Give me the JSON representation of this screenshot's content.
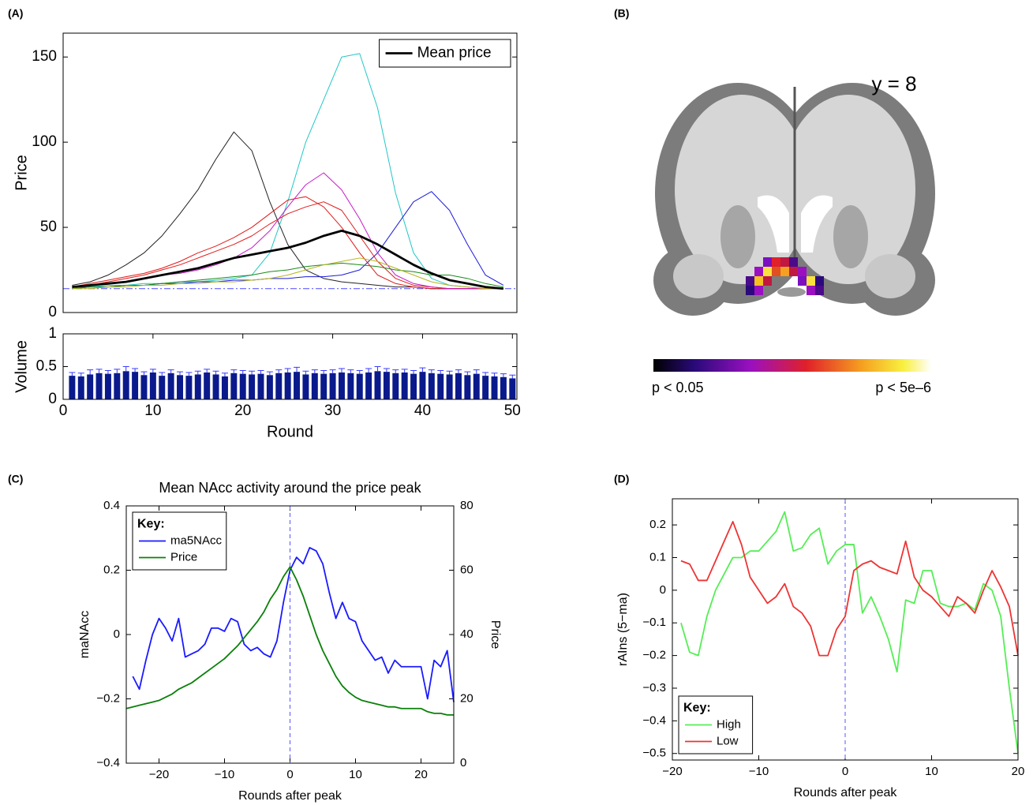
{
  "chart_data": [
    {
      "type": "line",
      "panel_label": "(A)",
      "ylabel": "Price",
      "x": [
        1,
        3,
        5,
        7,
        9,
        11,
        13,
        15,
        17,
        19,
        21,
        23,
        25,
        27,
        29,
        31,
        33,
        35,
        37,
        39,
        41,
        43,
        45,
        47,
        49
      ],
      "xlim": [
        0,
        50.5
      ],
      "ylim": [
        0,
        164
      ],
      "yticks": [
        0,
        50,
        100,
        150
      ],
      "reference_line": 14,
      "legend": "upper right",
      "series": [
        {
          "color": "#222222",
          "values": [
            16,
            18,
            22,
            28,
            35,
            45,
            58,
            72,
            90,
            106,
            95,
            65,
            40,
            25,
            20,
            18,
            17,
            16,
            15,
            15,
            14,
            14,
            14,
            14,
            14
          ]
        },
        {
          "color": "#22c7c7",
          "values": [
            15,
            15,
            16,
            16,
            17,
            17,
            18,
            18,
            19,
            20,
            22,
            35,
            65,
            100,
            125,
            150,
            152,
            120,
            70,
            35,
            20,
            16,
            15,
            14,
            14
          ]
        },
        {
          "color": "#1a1adb",
          "values": [
            14,
            15,
            15,
            16,
            16,
            17,
            17,
            18,
            18,
            19,
            19,
            20,
            20,
            21,
            21,
            22,
            25,
            35,
            50,
            65,
            71,
            60,
            40,
            22,
            16
          ]
        },
        {
          "color": "#e01a1a",
          "values": [
            15,
            17,
            19,
            21,
            23,
            26,
            30,
            35,
            39,
            44,
            50,
            58,
            66,
            68,
            62,
            50,
            35,
            22,
            17,
            15,
            14,
            14,
            14,
            14,
            14
          ]
        },
        {
          "color": "#e01a1a",
          "values": [
            15,
            16,
            18,
            20,
            22,
            25,
            28,
            32,
            36,
            40,
            45,
            52,
            58,
            62,
            65,
            60,
            45,
            30,
            20,
            16,
            15,
            14,
            14,
            14,
            14
          ]
        },
        {
          "color": "#c71ac7",
          "values": [
            15,
            16,
            17,
            18,
            20,
            22,
            23,
            25,
            28,
            32,
            38,
            48,
            62,
            75,
            82,
            72,
            55,
            35,
            22,
            17,
            15,
            14,
            14,
            14,
            14
          ]
        },
        {
          "color": "#1a8a1a",
          "values": [
            14,
            15,
            15,
            16,
            16,
            17,
            18,
            19,
            20,
            21,
            22,
            24,
            25,
            27,
            28,
            29,
            28,
            27,
            25,
            24,
            22,
            22,
            20,
            17,
            15
          ]
        },
        {
          "color": "#b5b51a",
          "values": [
            14,
            14,
            15,
            15,
            16,
            16,
            17,
            17,
            18,
            18,
            19,
            20,
            22,
            25,
            28,
            30,
            32,
            30,
            26,
            22,
            18,
            16,
            15,
            14,
            14
          ]
        },
        {
          "name": "Mean price",
          "color": "#000000",
          "values": [
            15,
            16,
            17,
            18,
            20,
            22,
            24,
            26,
            29,
            32,
            34,
            36,
            38,
            41,
            45,
            48,
            45,
            40,
            34,
            28,
            23,
            19,
            17,
            15,
            14
          ]
        }
      ]
    },
    {
      "type": "bar",
      "xlabel": "Round",
      "ylabel": "Volume",
      "color": "#0a1a8c",
      "error_color": "#3a3aff",
      "x": [
        1,
        2,
        3,
        4,
        5,
        6,
        7,
        8,
        9,
        10,
        11,
        12,
        13,
        14,
        15,
        16,
        17,
        18,
        19,
        20,
        21,
        22,
        23,
        24,
        25,
        26,
        27,
        28,
        29,
        30,
        31,
        32,
        33,
        34,
        35,
        36,
        37,
        38,
        39,
        40,
        41,
        42,
        43,
        44,
        45,
        46,
        47,
        48,
        49,
        50
      ],
      "values": [
        0.36,
        0.35,
        0.38,
        0.4,
        0.39,
        0.4,
        0.43,
        0.42,
        0.37,
        0.41,
        0.36,
        0.4,
        0.37,
        0.36,
        0.38,
        0.41,
        0.38,
        0.35,
        0.4,
        0.39,
        0.38,
        0.39,
        0.37,
        0.4,
        0.41,
        0.42,
        0.38,
        0.4,
        0.39,
        0.4,
        0.41,
        0.4,
        0.39,
        0.41,
        0.43,
        0.42,
        0.4,
        0.41,
        0.39,
        0.42,
        0.4,
        0.39,
        0.38,
        0.4,
        0.37,
        0.39,
        0.36,
        0.35,
        0.34,
        0.32
      ],
      "errors": [
        0.05,
        0.05,
        0.07,
        0.06,
        0.05,
        0.06,
        0.07,
        0.05,
        0.05,
        0.05,
        0.05,
        0.05,
        0.05,
        0.05,
        0.05,
        0.05,
        0.05,
        0.05,
        0.05,
        0.05,
        0.05,
        0.05,
        0.05,
        0.05,
        0.06,
        0.07,
        0.05,
        0.05,
        0.05,
        0.05,
        0.06,
        0.05,
        0.05,
        0.06,
        0.07,
        0.05,
        0.05,
        0.05,
        0.05,
        0.06,
        0.05,
        0.05,
        0.05,
        0.05,
        0.05,
        0.06,
        0.05,
        0.05,
        0.05,
        0.05
      ],
      "xlim": [
        0,
        50.5
      ],
      "xticks": [
        0,
        10,
        20,
        30,
        40,
        50
      ],
      "ylim": [
        0,
        1
      ],
      "yticks": [
        0,
        0.5,
        1
      ]
    },
    {
      "type": "line",
      "panel_label": "(C)",
      "title": "Mean NAcc activity around the price peak",
      "xlabel": "Rounds after peak",
      "ylabel": "maNAcc",
      "y2label": "Price",
      "x": [
        -25,
        -24,
        -23,
        -22,
        -21,
        -20,
        -19,
        -18,
        -17,
        -16,
        -15,
        -14,
        -13,
        -12,
        -11,
        -10,
        -9,
        -8,
        -7,
        -6,
        -5,
        -4,
        -3,
        -2,
        -1,
        0,
        1,
        2,
        3,
        4,
        5,
        6,
        7,
        8,
        9,
        10,
        11,
        12,
        13,
        14,
        15,
        16,
        17,
        18,
        19,
        20,
        21,
        22,
        23,
        24,
        25
      ],
      "xlim": [
        -25,
        25
      ],
      "xticks": [
        {
          "value": -20,
          "label": "−20"
        },
        {
          "value": -10,
          "label": "−10"
        },
        0,
        10,
        20
      ],
      "ylim": [
        -0.4,
        0.4
      ],
      "yticks": [
        {
          "value": -0.4,
          "label": "−0.4"
        },
        {
          "value": -0.2,
          "label": "−0.2"
        },
        0,
        0.2,
        0.4
      ],
      "y2lim": [
        0,
        80
      ],
      "y2ticks": [
        0,
        20,
        40,
        60,
        80
      ],
      "vline": 0,
      "legend": "upper left",
      "legend_title": "Key:",
      "series": [
        {
          "name": "ma5NAcc",
          "color": "#1a1aff",
          "values": [
            null,
            -0.13,
            -0.17,
            -0.08,
            0.0,
            0.05,
            0.02,
            -0.02,
            0.05,
            -0.07,
            -0.06,
            -0.05,
            -0.03,
            0.02,
            0.02,
            0.01,
            0.05,
            0.04,
            -0.03,
            -0.05,
            -0.04,
            -0.06,
            -0.07,
            -0.02,
            0.1,
            0.2,
            0.24,
            0.22,
            0.27,
            0.26,
            0.22,
            0.13,
            0.05,
            0.1,
            0.05,
            0.04,
            -0.02,
            -0.05,
            -0.08,
            -0.07,
            -0.12,
            -0.08,
            -0.1,
            -0.1,
            -0.1,
            -0.1,
            -0.2,
            -0.08,
            -0.1,
            -0.05,
            -0.21
          ]
        },
        {
          "name": "Price",
          "color": "#0a800a",
          "axis": "y2",
          "values": [
            17,
            17.5,
            18,
            18.5,
            19,
            19.5,
            20.5,
            21.5,
            23,
            24,
            25,
            26.5,
            28,
            29.5,
            31,
            32.5,
            34.5,
            36.5,
            39,
            41.5,
            44,
            47,
            51,
            54,
            58,
            61,
            57,
            52,
            46,
            40,
            35,
            31,
            27,
            24,
            22,
            20.5,
            19.5,
            19,
            18.5,
            18,
            17.5,
            17.5,
            17,
            17,
            17,
            17,
            16,
            15.5,
            15.5,
            15,
            15
          ]
        }
      ]
    },
    {
      "type": "line",
      "panel_label": "(D)",
      "xlabel": "Rounds after peak",
      "ylabel": "rAIns (5−ma)",
      "x": [
        -19,
        -18,
        -17,
        -16,
        -15,
        -14,
        -13,
        -12,
        -11,
        -10,
        -9,
        -8,
        -7,
        -6,
        -5,
        -4,
        -3,
        -2,
        -1,
        0,
        1,
        2,
        3,
        4,
        5,
        6,
        7,
        8,
        9,
        10,
        11,
        12,
        13,
        14,
        15,
        16,
        17,
        18,
        19,
        20
      ],
      "xlim": [
        -20,
        20
      ],
      "xticks": [
        {
          "value": -20,
          "label": "−20"
        },
        {
          "value": -10,
          "label": "−10"
        },
        0,
        10,
        20
      ],
      "ylim": [
        -0.52,
        0.28
      ],
      "yticks": [
        {
          "value": -0.5,
          "label": "−0.5"
        },
        {
          "value": -0.4,
          "label": "−0.4"
        },
        {
          "value": -0.3,
          "label": "−0.3"
        },
        {
          "value": -0.2,
          "label": "−0.2"
        },
        {
          "value": -0.1,
          "label": "−0.1"
        },
        0,
        0.1,
        0.2
      ],
      "vline": 0,
      "legend": "lower left",
      "legend_title": "Key:",
      "series": [
        {
          "name": "High",
          "color": "#55ee55",
          "values": [
            -0.1,
            -0.19,
            -0.2,
            -0.08,
            0.0,
            0.05,
            0.1,
            0.1,
            0.12,
            0.12,
            0.15,
            0.18,
            0.24,
            0.12,
            0.13,
            0.17,
            0.19,
            0.08,
            0.12,
            0.14,
            0.14,
            -0.07,
            -0.02,
            -0.08,
            -0.15,
            -0.25,
            -0.03,
            -0.04,
            0.06,
            0.06,
            -0.04,
            -0.05,
            -0.05,
            -0.04,
            -0.06,
            0.02,
            0.0,
            -0.08,
            -0.3,
            -0.5
          ]
        },
        {
          "name": "Low",
          "color": "#ee3333",
          "values": [
            0.09,
            0.08,
            0.03,
            0.03,
            0.09,
            0.15,
            0.21,
            0.14,
            0.04,
            0.0,
            -0.04,
            -0.02,
            0.02,
            -0.05,
            -0.07,
            -0.11,
            -0.2,
            -0.2,
            -0.12,
            -0.08,
            0.06,
            0.08,
            0.09,
            0.07,
            0.06,
            0.05,
            0.15,
            0.04,
            0.0,
            -0.02,
            -0.05,
            -0.08,
            -0.02,
            -0.04,
            -0.07,
            0.0,
            0.06,
            0.01,
            -0.05,
            -0.2
          ]
        }
      ]
    }
  ],
  "brain_image": {
    "panel_label": "(B)",
    "slice_label": "y = 8",
    "colorbar_min_label": "p < 0.05",
    "colorbar_max_label": "p < 5e–6"
  }
}
